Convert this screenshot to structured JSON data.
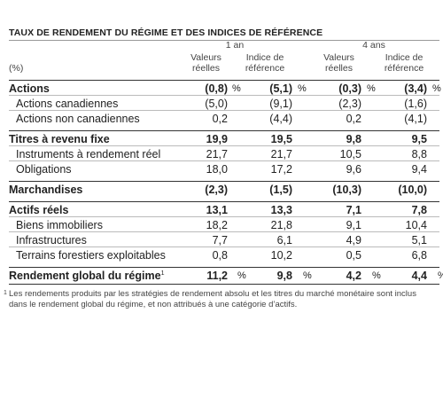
{
  "title": "TAUX DE RENDEMENT DU RÉGIME ET DES INDICES DE RÉFÉRENCE",
  "header": {
    "unit": "(%)",
    "periods": [
      "1 an",
      "4 ans"
    ],
    "columns": [
      "Valeurs réelles",
      "Indice de référence",
      "Valeurs réelles",
      "Indice de référence"
    ]
  },
  "rows": [
    {
      "label": "Actions",
      "bold": true,
      "cells": [
        {
          "value": "(0,8)",
          "unit": "%"
        },
        {
          "value": "(5,1)",
          "unit": "%"
        },
        {
          "value": "(0,3)",
          "unit": "%"
        },
        {
          "value": "(3,4)",
          "unit": "%"
        }
      ]
    },
    {
      "label": "Actions canadiennes",
      "bold": false,
      "cells": [
        {
          "value": "(5,0)"
        },
        {
          "value": "(9,1)"
        },
        {
          "value": "(2,3)"
        },
        {
          "value": "(1,6)"
        }
      ]
    },
    {
      "label": "Actions non canadiennes",
      "bold": false,
      "cells": [
        {
          "value": "0,2"
        },
        {
          "value": "(4,4)"
        },
        {
          "value": "0,2"
        },
        {
          "value": "(4,1)"
        }
      ]
    },
    {
      "label": "Titres à revenu fixe",
      "bold": true,
      "cells": [
        {
          "value": "19,9"
        },
        {
          "value": "19,5"
        },
        {
          "value": "9,8"
        },
        {
          "value": "9,5"
        }
      ]
    },
    {
      "label": "Instruments à rendement réel",
      "bold": false,
      "cells": [
        {
          "value": "21,7"
        },
        {
          "value": "21,7"
        },
        {
          "value": "10,5"
        },
        {
          "value": "8,8"
        }
      ]
    },
    {
      "label": "Obligations",
      "bold": false,
      "cells": [
        {
          "value": "18,0"
        },
        {
          "value": "17,2"
        },
        {
          "value": "9,6"
        },
        {
          "value": "9,4"
        }
      ]
    },
    {
      "label": "Marchandises",
      "bold": true,
      "cells": [
        {
          "value": "(2,3)"
        },
        {
          "value": "(1,5)"
        },
        {
          "value": "(10,3)"
        },
        {
          "value": "(10,0)"
        }
      ]
    },
    {
      "label": "Actifs réels",
      "bold": true,
      "cells": [
        {
          "value": "13,1"
        },
        {
          "value": "13,3"
        },
        {
          "value": "7,1"
        },
        {
          "value": "7,8"
        }
      ]
    },
    {
      "label": "Biens immobiliers",
      "bold": false,
      "cells": [
        {
          "value": "18,2"
        },
        {
          "value": "21,8"
        },
        {
          "value": "9,1"
        },
        {
          "value": "10,4"
        }
      ]
    },
    {
      "label": "Infrastructures",
      "bold": false,
      "cells": [
        {
          "value": "7,7"
        },
        {
          "value": "6,1"
        },
        {
          "value": "4,9"
        },
        {
          "value": "5,1"
        }
      ]
    },
    {
      "label": "Terrains forestiers exploitables",
      "bold": false,
      "cells": [
        {
          "value": "0,8"
        },
        {
          "value": "10,2"
        },
        {
          "value": "0,5"
        },
        {
          "value": "6,8"
        }
      ]
    },
    {
      "label": "Rendement global du régime",
      "note": "1",
      "bold": true,
      "cells": [
        {
          "value": "11,2",
          "unit": "%"
        },
        {
          "value": "9,8",
          "unit": "%"
        },
        {
          "value": "4,2",
          "unit": "%"
        },
        {
          "value": "4,4",
          "unit": "%"
        }
      ]
    }
  ],
  "footnote": {
    "mark": "1",
    "text": "Les rendements produits par les stratégies de rendement absolu et les titres du marché monétaire sont inclus dans le rendement global du régime, et non attribués à une catégorie d’actifs."
  }
}
